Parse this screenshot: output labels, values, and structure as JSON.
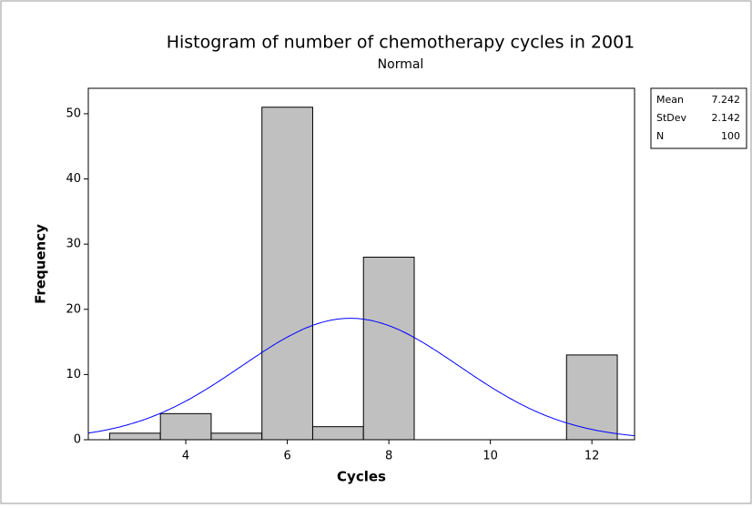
{
  "chart_data": {
    "type": "histogram",
    "title": "Histogram of number of chemotherapy cycles in 2001",
    "subtitle": "Normal",
    "x_label": "Cycles",
    "y_label": "Frequency",
    "bins": [
      2.5,
      3.5,
      4.5,
      5.5,
      6.5,
      7.5,
      8.5,
      9.5,
      10.5,
      11.5,
      12.5
    ],
    "values": [
      1,
      4,
      1,
      51,
      2,
      28,
      0,
      0,
      0,
      13
    ],
    "color": "#c0c0c0",
    "curve_color": "#0000ff",
    "xlim": [
      2.08,
      12.84
    ],
    "xticks": [
      4,
      6,
      8,
      10,
      12
    ],
    "ylim": [
      0,
      53.9
    ],
    "yticks": [
      0,
      10,
      20,
      30,
      40,
      50
    ],
    "stats": [
      {
        "label": "Mean",
        "value": 7.242
      },
      {
        "label": "StDev",
        "value": 2.142
      },
      {
        "label": "N",
        "value": 100
      }
    ]
  }
}
